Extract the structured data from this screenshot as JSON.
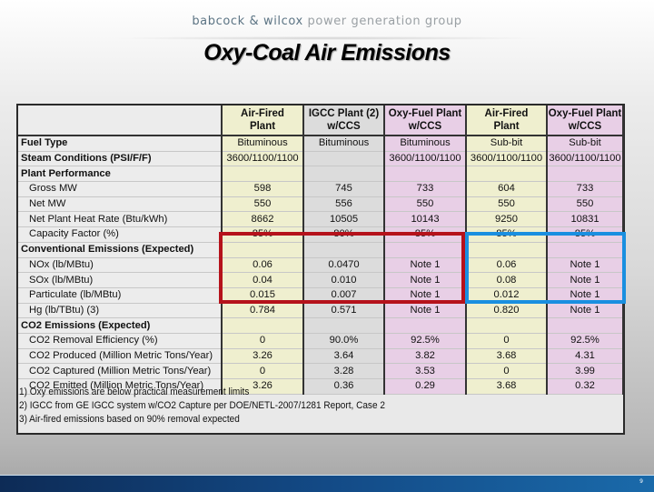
{
  "header": {
    "brand_primary": "babcock & wilcox",
    "brand_secondary": " power generation group",
    "title": "Oxy-Coal Air Emissions"
  },
  "table": {
    "columns": [
      {
        "label": "Air-Fired Plant",
        "line1": "Air-Fired",
        "line2": "Plant",
        "color": "#efefcf"
      },
      {
        "label": "IGCC Plant (2) w/CCS",
        "line1": "IGCC Plant (2)",
        "line2": "w/CCS",
        "color": "#dcdcdc"
      },
      {
        "label": "Oxy-Fuel Plant w/CCS",
        "line1": "Oxy-Fuel Plant",
        "line2": "w/CCS",
        "color": "#e8cfe6"
      },
      {
        "label": "Air-Fired Plant",
        "line1": "Air-Fired",
        "line2": "Plant",
        "color": "#efefcf"
      },
      {
        "label": "Oxy-Fuel Plant w/CCS",
        "line1": "Oxy-Fuel Plant",
        "line2": "w/CCS",
        "color": "#e8cfe6"
      }
    ],
    "rows": [
      {
        "label": "Fuel Type",
        "type": "section",
        "values": [
          "Bituminous",
          "Bituminous",
          "Bituminous",
          "Sub-bit",
          "Sub-bit"
        ]
      },
      {
        "label": "Steam Conditions (PSI/F/F)",
        "type": "section",
        "values": [
          "3600/1100/1100",
          "",
          "3600/1100/1100",
          "3600/1100/1100",
          "3600/1100/1100"
        ]
      },
      {
        "label": "Plant Performance",
        "type": "section",
        "values": [
          "",
          "",
          "",
          "",
          ""
        ]
      },
      {
        "label": "Gross MW",
        "type": "sub",
        "values": [
          "598",
          "745",
          "733",
          "604",
          "733"
        ]
      },
      {
        "label": "Net MW",
        "type": "sub",
        "values": [
          "550",
          "556",
          "550",
          "550",
          "550"
        ]
      },
      {
        "label": "Net Plant Heat Rate (Btu/kWh)",
        "type": "sub",
        "values": [
          "8662",
          "10505",
          "10143",
          "9250",
          "10831"
        ]
      },
      {
        "label": "Capacity Factor (%)",
        "type": "sub",
        "values": [
          "85%",
          "80%",
          "85%",
          "85%",
          "85%"
        ]
      },
      {
        "label": "Conventional Emissions (Expected)",
        "type": "section",
        "values": [
          "",
          "",
          "",
          "",
          ""
        ]
      },
      {
        "label": "NOx (lb/MBtu)",
        "type": "sub",
        "values": [
          "0.06",
          "0.0470",
          "Note 1",
          "0.06",
          "Note 1"
        ]
      },
      {
        "label": "SOx (lb/MBtu)",
        "type": "sub",
        "values": [
          "0.04",
          "0.010",
          "Note 1",
          "0.08",
          "Note 1"
        ]
      },
      {
        "label": "Particulate (lb/MBtu)",
        "type": "sub",
        "values": [
          "0.015",
          "0.007",
          "Note 1",
          "0.012",
          "Note 1"
        ]
      },
      {
        "label": "Hg (lb/TBtu) (3)",
        "type": "sub",
        "values": [
          "0.784",
          "0.571",
          "Note 1",
          "0.820",
          "Note 1"
        ]
      },
      {
        "label": "CO2 Emissions (Expected)",
        "type": "section",
        "values": [
          "",
          "",
          "",
          "",
          ""
        ]
      },
      {
        "label": "CO2 Removal Efficiency (%)",
        "type": "sub",
        "values": [
          "0",
          "90.0%",
          "92.5%",
          "0",
          "92.5%"
        ]
      },
      {
        "label": "CO2 Produced (Million Metric Tons/Year)",
        "type": "sub",
        "values": [
          "3.26",
          "3.64",
          "3.82",
          "3.68",
          "4.31"
        ]
      },
      {
        "label": "CO2 Captured (Million Metric Tons/Year)",
        "type": "sub",
        "values": [
          "0",
          "3.28",
          "3.53",
          "0",
          "3.99"
        ]
      },
      {
        "label": "CO2 Emitted (Million Metric Tons/Year)",
        "type": "sub",
        "values": [
          "3.26",
          "0.36",
          "0.29",
          "3.68",
          "0.32"
        ]
      }
    ],
    "notes": [
      "1) Oxy emissions are below practical measurement limits",
      "2) IGCC from GE IGCC system w/CO2 Capture per DOE/NETL-2007/1281 Report, Case 2",
      "3) Air-fired emissions based on 90% removal expected"
    ],
    "highlights": {
      "red_box": "Bituminous comparison: conventional emissions (Air-Fired vs IGCC)",
      "red_color": "#b5121b",
      "blue_box": "Sub-bit comparison: conventional emissions (Air-Fired vs Oxy-Fuel)",
      "blue_color": "#1a8fe0"
    }
  },
  "footer": {
    "page_number": "9",
    "bar_color": "#134a86"
  }
}
